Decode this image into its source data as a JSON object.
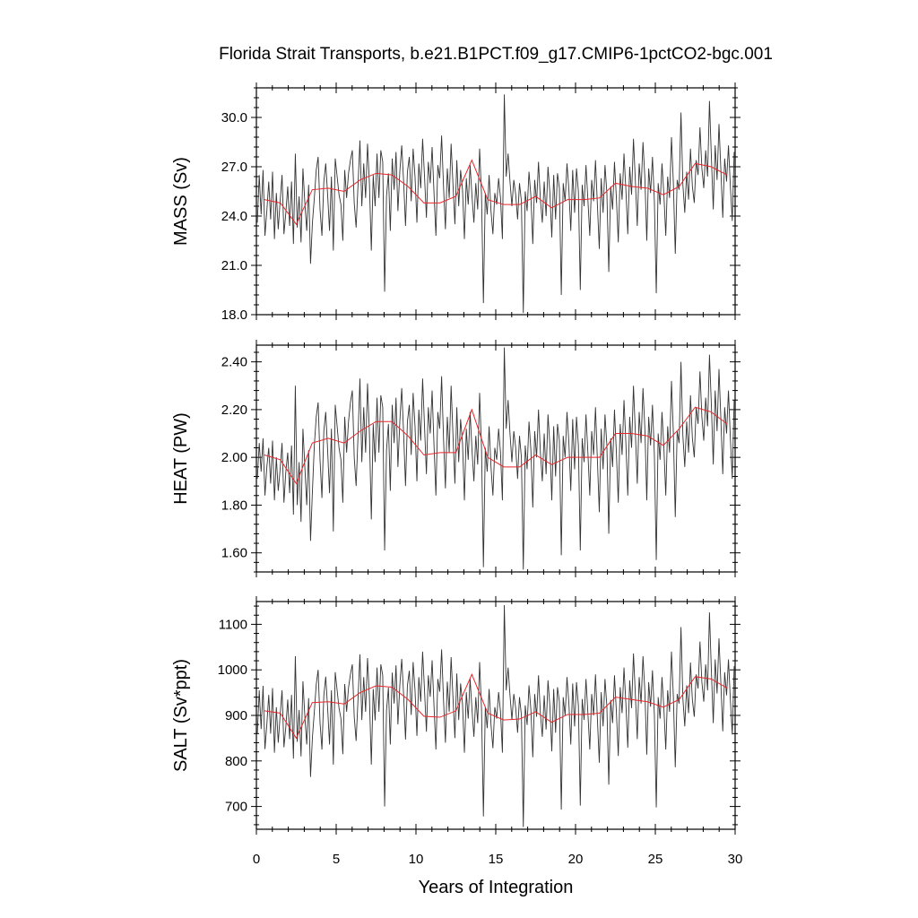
{
  "title": "Florida Strait Transports, b.e21.B1PCT.f09_g17.CMIP6-1pctCO2-bgc.001",
  "chart_data": {
    "type": "line",
    "title": "Florida Strait Transports, b.e21.B1PCT.f09_g17.CMIP6-1pctCO2-bgc.001",
    "xlabel": "Years of Integration",
    "xlim": [
      0,
      30
    ],
    "x_ticks": [
      0,
      5,
      10,
      15,
      20,
      25,
      30
    ],
    "grid": false,
    "legend": "none",
    "colors": {
      "monthly": "#333333",
      "annual_mean": "#e8262a"
    },
    "panels": [
      {
        "ylabel": "MASS (Sv)",
        "ylim": [
          18.0,
          31.8
        ],
        "y_ticks": [
          "18.0",
          "21.0",
          "24.0",
          "27.0",
          "30.0"
        ],
        "annual_x": [
          0.5,
          1.5,
          2.5,
          3.5,
          4.5,
          5.5,
          6.5,
          7.5,
          8.5,
          9.5,
          10.5,
          11.5,
          12.5,
          13.5,
          14.5,
          15.5,
          16.5,
          17.5,
          18.5,
          19.5,
          20.5,
          21.5,
          22.5,
          23.5,
          24.5,
          25.5,
          26.5,
          27.5,
          28.5,
          29.5
        ],
        "annual_values": [
          25.0,
          24.8,
          23.5,
          25.6,
          25.7,
          25.5,
          26.2,
          26.6,
          26.5,
          25.8,
          24.8,
          24.8,
          25.2,
          27.4,
          25.0,
          24.7,
          24.7,
          25.2,
          24.5,
          25.0,
          25.0,
          25.1,
          26.0,
          25.8,
          25.7,
          25.3,
          25.8,
          27.2,
          27.0,
          26.5
        ],
        "monthly_values": [
          23.6,
          26.5,
          24.1,
          26.8,
          22.8,
          24.3,
          26.1,
          23.8,
          26.7,
          22.6,
          25.4,
          23.2,
          24.9,
          26.5,
          22.9,
          24.2,
          25.8,
          23.4,
          26.1,
          22.3,
          27.8,
          23.3,
          25.2,
          22.4,
          26.9,
          24.8,
          23.1,
          25.9,
          21.1,
          23.6,
          25.1,
          26.8,
          27.6,
          24.4,
          22.8,
          26.1,
          27.2,
          25.3,
          23.1,
          26.4,
          21.9,
          27.5,
          26.4,
          25.3,
          24.7,
          22.5,
          26.8,
          25.1,
          26.6,
          27.4,
          28.0,
          24.8,
          23.3,
          25.9,
          28.6,
          24.6,
          27.2,
          25.1,
          28.4,
          26.0,
          21.9,
          26.5,
          24.6,
          27.8,
          25.1,
          28.0,
          27.3,
          19.4,
          25.2,
          26.6,
          23.1,
          27.5,
          25.6,
          27.9,
          24.3,
          26.7,
          28.3,
          26.1,
          23.4,
          26.7,
          27.6,
          24.9,
          28.1,
          26.4,
          23.6,
          27.2,
          25.7,
          28.7,
          26.4,
          23.9,
          27.3,
          26.0,
          28.2,
          25.4,
          22.8,
          27.1,
          26.3,
          28.9,
          25.8,
          23.2,
          26.9,
          25.1,
          28.4,
          25.9,
          23.5,
          27.4,
          24.6,
          26.8,
          25.6,
          22.6,
          26.3,
          24.7,
          27.1,
          25.2,
          23.6,
          26.0,
          24.4,
          28.1,
          25.3,
          18.7,
          25.4,
          24.1,
          26.5,
          24.3,
          22.9,
          25.4,
          24.7,
          26.3,
          25.1,
          22.6,
          31.4,
          26.4,
          27.8,
          26.1,
          24.6,
          26.2,
          25.3,
          23.8,
          26.0,
          24.9,
          18.1,
          25.5,
          24.3,
          26.7,
          25.2,
          22.3,
          26.2,
          24.8,
          27.3,
          25.0,
          23.6,
          26.1,
          24.0,
          27.0,
          25.4,
          22.7,
          26.5,
          23.8,
          26.6,
          25.7,
          19.2,
          26.0,
          24.9,
          27.2,
          25.6,
          23.1,
          26.8,
          24.2,
          26.9,
          25.5,
          19.5,
          25.9,
          24.6,
          27.1,
          25.0,
          22.8,
          26.2,
          24.9,
          27.4,
          24.7,
          22.0,
          26.3,
          24.2,
          27.1,
          25.4,
          20.6,
          25.8,
          24.4,
          27.3,
          25.1,
          22.4,
          26.6,
          25.0,
          27.8,
          25.6,
          22.9,
          27.0,
          25.3,
          28.7,
          26.1,
          23.4,
          27.2,
          25.6,
          28.5,
          26.3,
          22.5,
          26.9,
          25.4,
          27.6,
          24.9,
          19.3,
          26.0,
          24.7,
          27.2,
          25.3,
          22.8,
          26.4,
          25.1,
          28.8,
          26.0,
          21.7,
          26.2,
          25.6,
          30.3,
          25.9,
          24.2,
          26.7,
          25.0,
          28.1,
          25.8,
          24.8,
          27.4,
          26.5,
          29.4,
          26.9,
          25.7,
          28.0,
          26.4,
          31.0,
          27.6,
          24.4,
          28.3,
          26.2,
          29.6,
          26.8,
          23.9,
          27.5,
          26.1,
          28.3,
          25.8,
          23.7,
          27.9
        ]
      },
      {
        "ylabel": "HEAT (PW)",
        "ylim": [
          1.52,
          2.47
        ],
        "y_ticks": [
          "1.60",
          "1.80",
          "2.00",
          "2.20",
          "2.40"
        ],
        "annual_x": [
          0.5,
          1.5,
          2.5,
          3.5,
          4.5,
          5.5,
          6.5,
          7.5,
          8.5,
          9.5,
          10.5,
          11.5,
          12.5,
          13.5,
          14.5,
          15.5,
          16.5,
          17.5,
          18.5,
          19.5,
          20.5,
          21.5,
          22.5,
          23.5,
          24.5,
          25.5,
          26.5,
          27.5,
          28.5,
          29.5
        ],
        "annual_values": [
          2.01,
          1.99,
          1.89,
          2.06,
          2.08,
          2.06,
          2.11,
          2.15,
          2.15,
          2.09,
          2.01,
          2.02,
          2.02,
          2.2,
          2.0,
          1.96,
          1.96,
          2.01,
          1.97,
          2.0,
          2.0,
          2.0,
          2.1,
          2.1,
          2.09,
          2.05,
          2.12,
          2.21,
          2.19,
          2.14
        ],
        "monthly_values": [
          1.91,
          2.06,
          1.94,
          2.08,
          1.84,
          1.96,
          2.04,
          1.89,
          2.07,
          1.82,
          2.0,
          1.86,
          1.95,
          2.06,
          1.81,
          1.94,
          2.02,
          1.85,
          2.05,
          1.76,
          2.3,
          1.8,
          1.98,
          1.73,
          2.12,
          1.96,
          1.8,
          2.03,
          1.65,
          1.86,
          2.05,
          2.17,
          2.23,
          1.99,
          1.83,
          2.11,
          2.19,
          2.03,
          1.85,
          2.12,
          1.69,
          2.22,
          2.13,
          2.04,
          1.99,
          1.81,
          2.17,
          2.02,
          2.15,
          2.23,
          2.28,
          2.0,
          1.88,
          2.09,
          2.33,
          1.98,
          2.21,
          2.02,
          2.31,
          2.1,
          1.74,
          2.14,
          1.98,
          2.25,
          2.02,
          2.26,
          2.21,
          1.61,
          2.03,
          2.14,
          1.86,
          2.22,
          2.06,
          2.25,
          1.96,
          2.15,
          2.29,
          2.1,
          1.88,
          2.15,
          2.22,
          2.01,
          2.27,
          2.13,
          1.9,
          2.2,
          2.07,
          2.33,
          2.13,
          1.93,
          2.21,
          2.1,
          2.28,
          2.05,
          1.84,
          2.19,
          2.12,
          2.34,
          2.08,
          1.87,
          2.17,
          2.02,
          2.3,
          2.09,
          1.89,
          2.21,
          1.98,
          2.16,
          2.06,
          1.82,
          2.12,
          1.99,
          2.19,
          2.03,
          1.9,
          2.09,
          1.97,
          2.27,
          2.04,
          1.54,
          2.04,
          1.94,
          2.13,
          1.96,
          1.84,
          2.04,
          1.99,
          2.12,
          2.02,
          1.82,
          2.46,
          2.12,
          2.24,
          2.1,
          1.98,
          2.11,
          2.04,
          1.91,
          2.09,
          2.0,
          1.53,
          2.05,
          1.95,
          2.15,
          2.03,
          1.79,
          2.11,
          2.0,
          2.2,
          2.02,
          1.9,
          2.1,
          1.93,
          2.18,
          2.05,
          1.82,
          2.13,
          1.92,
          2.14,
          2.07,
          1.59,
          2.09,
          2.0,
          2.19,
          2.06,
          1.86,
          2.16,
          1.95,
          2.17,
          2.05,
          1.61,
          2.08,
          1.98,
          2.18,
          2.02,
          1.84,
          2.11,
          2.01,
          2.21,
          1.99,
          1.77,
          2.12,
          1.95,
          2.18,
          2.05,
          1.68,
          2.08,
          1.96,
          2.2,
          2.02,
          1.81,
          2.14,
          2.01,
          2.24,
          2.06,
          1.84,
          2.17,
          2.04,
          2.3,
          2.1,
          1.89,
          2.19,
          2.06,
          2.29,
          2.12,
          1.82,
          2.17,
          2.05,
          2.22,
          2.01,
          1.57,
          2.1,
          1.99,
          2.19,
          2.04,
          1.84,
          2.13,
          2.02,
          2.32,
          2.1,
          1.75,
          2.11,
          2.06,
          2.4,
          2.09,
          1.96,
          2.15,
          2.02,
          2.26,
          2.08,
          2.0,
          2.21,
          2.14,
          2.36,
          2.17,
          2.07,
          2.25,
          2.13,
          2.43,
          2.22,
          1.97,
          2.28,
          2.11,
          2.37,
          2.16,
          1.93,
          2.21,
          2.1,
          2.28,
          2.08,
          1.91,
          2.24
        ]
      },
      {
        "ylabel": "SALT (Sv*ppt)",
        "ylim": [
          650,
          1150
        ],
        "y_ticks": [
          "700",
          "800",
          "900",
          "1000",
          "1100"
        ],
        "annual_x": [
          0.5,
          1.5,
          2.5,
          3.5,
          4.5,
          5.5,
          6.5,
          7.5,
          8.5,
          9.5,
          10.5,
          11.5,
          12.5,
          13.5,
          14.5,
          15.5,
          16.5,
          17.5,
          18.5,
          19.5,
          20.5,
          21.5,
          22.5,
          23.5,
          24.5,
          25.5,
          26.5,
          27.5,
          28.5,
          29.5
        ],
        "annual_values": [
          910,
          905,
          850,
          928,
          930,
          925,
          950,
          965,
          962,
          935,
          898,
          896,
          910,
          990,
          905,
          890,
          892,
          908,
          885,
          902,
          902,
          905,
          940,
          935,
          930,
          918,
          935,
          985,
          980,
          960
        ],
        "monthly_values": [
          860,
          955,
          870,
          965,
          826,
          880,
          945,
          860,
          960,
          818,
          918,
          840,
          900,
          955,
          830,
          875,
          935,
          848,
          945,
          805,
          1030,
          842,
          912,
          810,
          975,
          898,
          836,
          938,
          765,
          852,
          908,
          968,
          1000,
          884,
          825,
          944,
          985,
          916,
          836,
          955,
          792,
          995,
          955,
          916,
          893,
          815,
          969,
          908,
          961,
          990,
          1012,
          897,
          844,
          936,
          1034,
          890,
          984,
          908,
          1026,
          940,
          792,
          958,
          889,
          1005,
          908,
          1012,
          988,
          700,
          911,
          961,
          836,
          994,
          926,
          1010,
          880,
          966,
          1024,
          945,
          847,
          966,
          998,
          901,
          1017,
          955,
          855,
          984,
          930,
          1040,
          955,
          864,
          988,
          941,
          1021,
          920,
          825,
          980,
          952,
          1045,
          934,
          840,
          974,
          908,
          1028,
          938,
          850,
          992,
          890,
          970,
          925,
          818,
          951,
          893,
          980,
          912,
          853,
          940,
          883,
          1017,
          915,
          678,
          918,
          872,
          958,
          880,
          828,
          918,
          893,
          951,
          908,
          818,
          1142,
          955,
          1005,
          944,
          890,
          947,
          916,
          862,
          940,
          901,
          655,
          922,
          879,
          966,
          912,
          808,
          947,
          897,
          988,
          904,
          853,
          944,
          869,
          977,
          920,
          821,
          958,
          862,
          962,
          930,
          693,
          940,
          900,
          984,
          926,
          836,
          970,
          876,
          973,
          922,
          702,
          936,
          890,
          980,
          905,
          825,
          947,
          900,
          990,
          893,
          796,
          951,
          876,
          980,
          920,
          748,
          934,
          883,
          988,
          908,
          811,
          962,
          905,
          1005,
          926,
          829,
          977,
          916,
          1036,
          944,
          848,
          984,
          926,
          1030,
          952,
          814,
          973,
          919,
          999,
          901,
          698,
          940,
          893,
          984,
          915,
          825,
          955,
          908,
          1040,
          941,
          786,
          947,
          926,
          1094,
          937,
          876,
          966,
          905,
          1016,
          934,
          897,
          990,
          959,
          1062,
          973,
          930,
          1012,
          955,
          1126,
          998,
          883,
          1023,
          948,
          1069,
          970,
          865,
          995,
          944,
          1023,
          934,
          858,
          1008
        ]
      }
    ]
  }
}
